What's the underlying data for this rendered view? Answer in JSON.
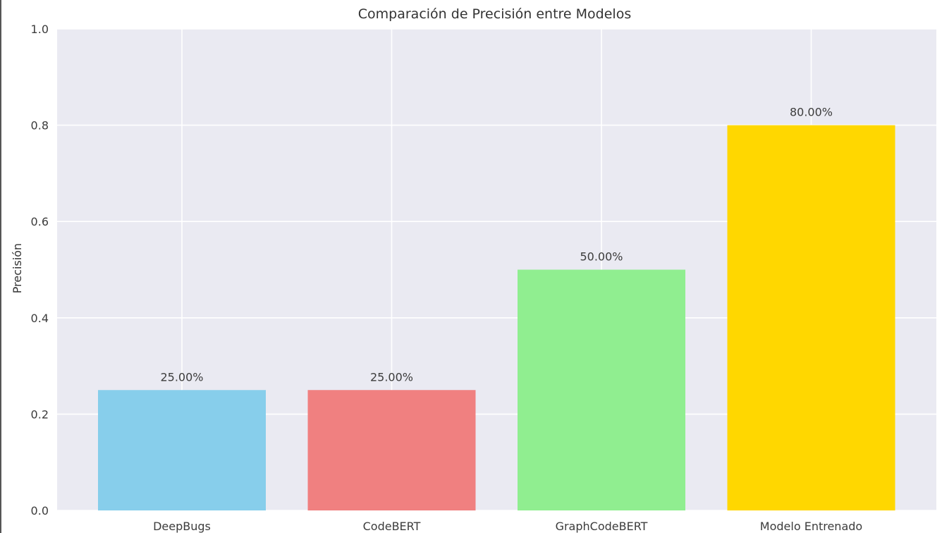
{
  "chart_data": {
    "type": "bar",
    "title": "Comparación de Precisión entre Modelos",
    "xlabel": "",
    "ylabel": "Precisión",
    "categories": [
      "DeepBugs",
      "CodeBERT",
      "GraphCodeBERT",
      "Modelo Entrenado"
    ],
    "values": [
      0.25,
      0.25,
      0.5,
      0.8
    ],
    "data_labels": [
      "25.00%",
      "25.00%",
      "50.00%",
      "80.00%"
    ],
    "colors": [
      "#87CEEB",
      "#F08080",
      "#90EE90",
      "#FFD700"
    ],
    "ylim": [
      0,
      1.0
    ],
    "yticks": [
      0.0,
      0.2,
      0.4,
      0.6,
      0.8,
      1.0
    ],
    "ytick_labels": [
      "0.0",
      "0.2",
      "0.4",
      "0.6",
      "0.8",
      "1.0"
    ],
    "grid": true,
    "background": "#EAEAF2"
  }
}
